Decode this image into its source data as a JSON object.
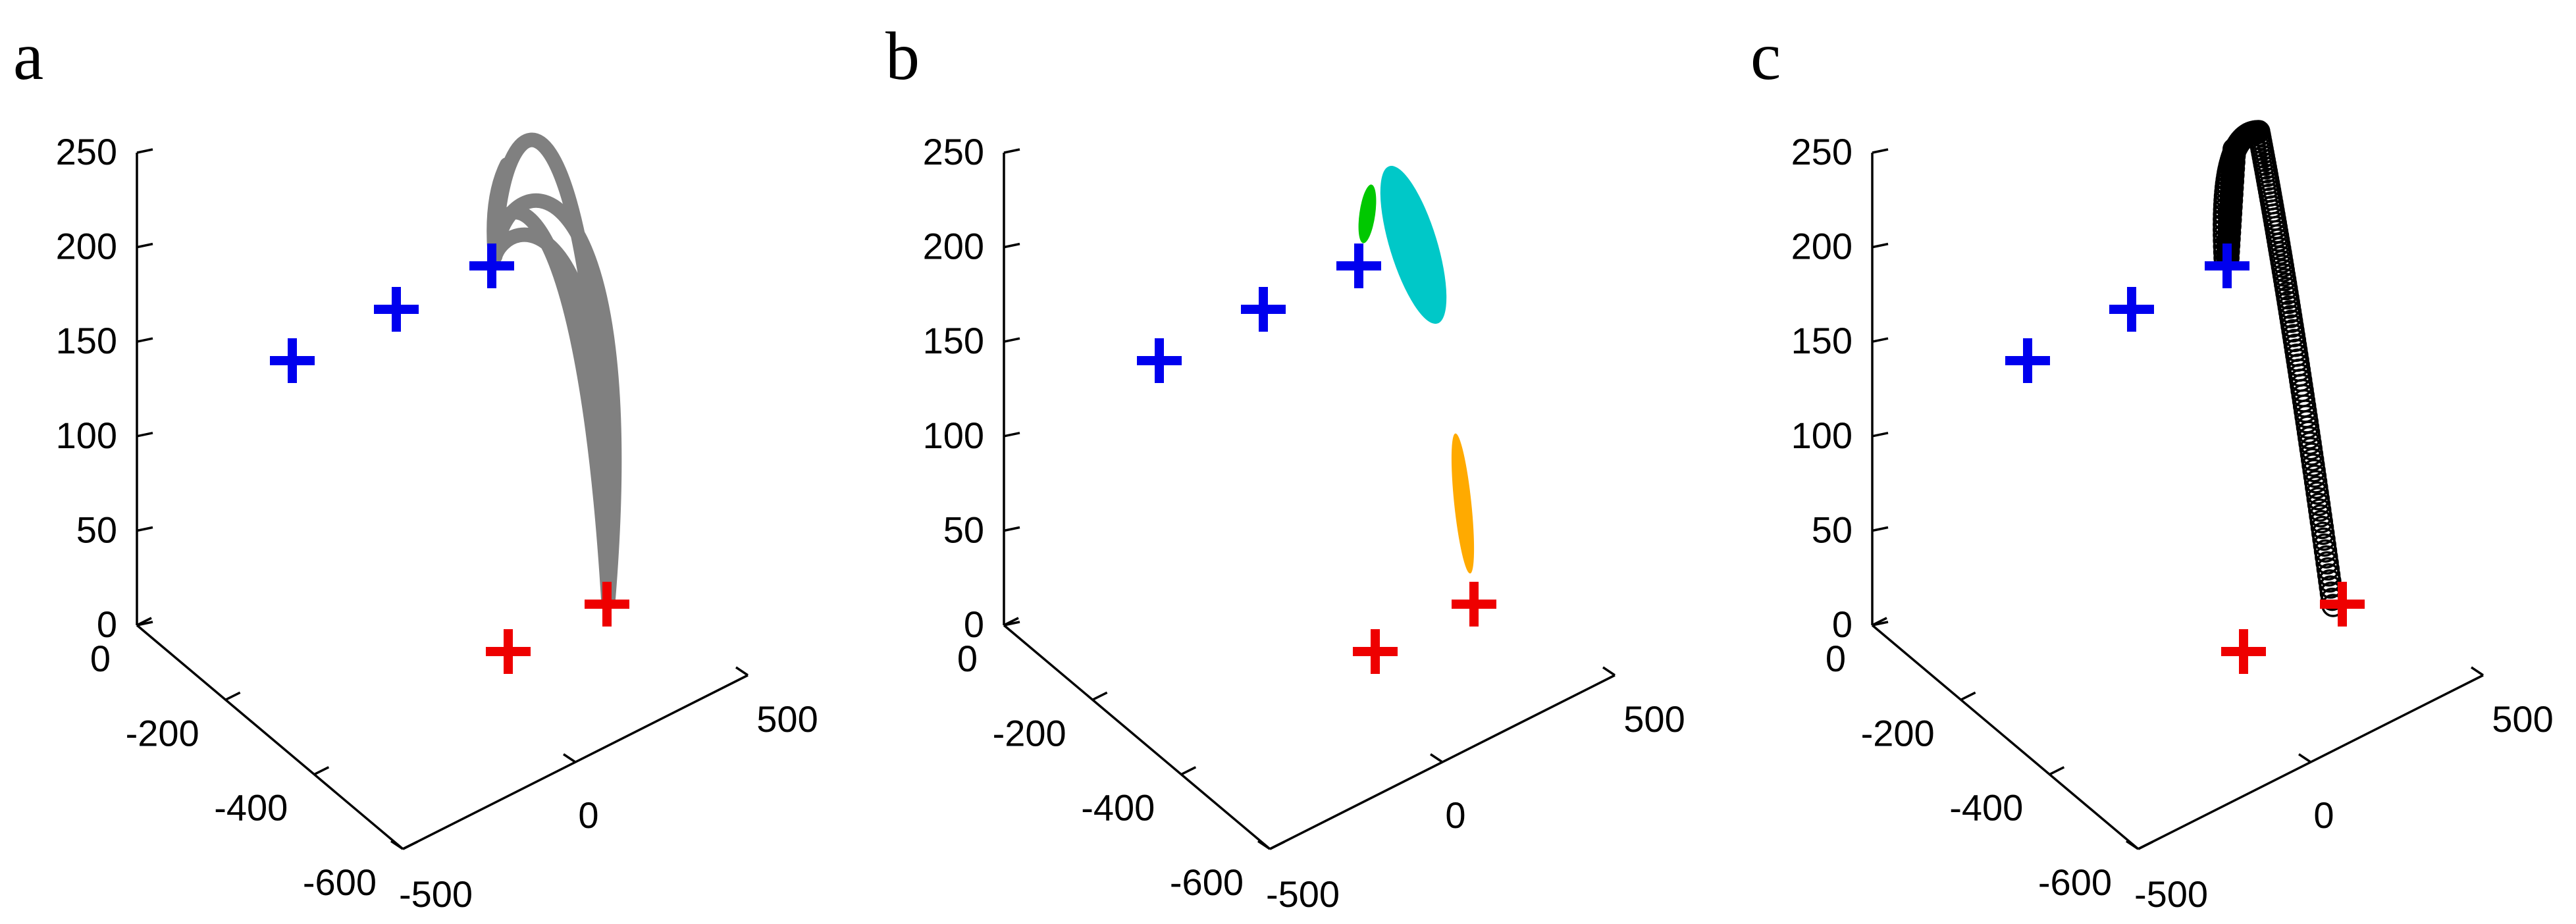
{
  "chart_data": [
    {
      "panel": "a",
      "type": "line",
      "z_ticks": [
        "0",
        "50",
        "100",
        "150",
        "200",
        "250"
      ],
      "y_ticks": [
        "0",
        "-200",
        "-400",
        "-600"
      ],
      "x_ticks": [
        "-500",
        "0",
        "500"
      ],
      "zlim": [
        0,
        250
      ],
      "grid": false,
      "markers": {
        "blue": [
          [
            -640,
            -50,
            175
          ],
          [
            -460,
            -50,
            190
          ],
          [
            -300,
            -50,
            195
          ]
        ],
        "red": [
          [
            -230,
            -390,
            0
          ],
          [
            -60,
            -390,
            0
          ]
        ],
        "blue_color": "#0000ee",
        "red_color": "#ee0000"
      },
      "trajectories": {
        "color": "#808080",
        "z_peak": [
          270,
          230,
          215,
          240
        ]
      }
    },
    {
      "panel": "b",
      "type": "scatter",
      "z_ticks": [
        "0",
        "50",
        "100",
        "150",
        "200",
        "250"
      ],
      "y_ticks": [
        "0",
        "-200",
        "-400",
        "-600"
      ],
      "x_ticks": [
        "-500",
        "0",
        "500"
      ],
      "zlim": [
        0,
        250
      ],
      "grid": false,
      "markers": {
        "blue": [
          [
            -640,
            -50,
            175
          ],
          [
            -460,
            -50,
            190
          ],
          [
            -300,
            -50,
            195
          ]
        ],
        "red": [
          [
            -230,
            -390,
            0
          ],
          [
            -60,
            -390,
            0
          ]
        ],
        "blue_color": "#0000ee",
        "red_color": "#ee0000"
      },
      "ellipses": [
        {
          "color": "#00c800"
        },
        {
          "color": "#00c8c8"
        },
        {
          "color": "#ffaa00"
        }
      ]
    },
    {
      "panel": "c",
      "type": "scatter",
      "z_ticks": [
        "0",
        "50",
        "100",
        "150",
        "200",
        "250"
      ],
      "y_ticks": [
        "0",
        "-200",
        "-400",
        "-600"
      ],
      "x_ticks": [
        "-500",
        "0",
        "500"
      ],
      "zlim": [
        0,
        250
      ],
      "grid": false,
      "markers": {
        "blue": [
          [
            -640,
            -50,
            175
          ],
          [
            -460,
            -50,
            190
          ],
          [
            -300,
            -50,
            195
          ]
        ],
        "red": [
          [
            -230,
            -390,
            0
          ],
          [
            -60,
            -390,
            0
          ]
        ],
        "blue_color": "#0000ee",
        "red_color": "#ee0000"
      },
      "circles_color": "#000000"
    }
  ]
}
